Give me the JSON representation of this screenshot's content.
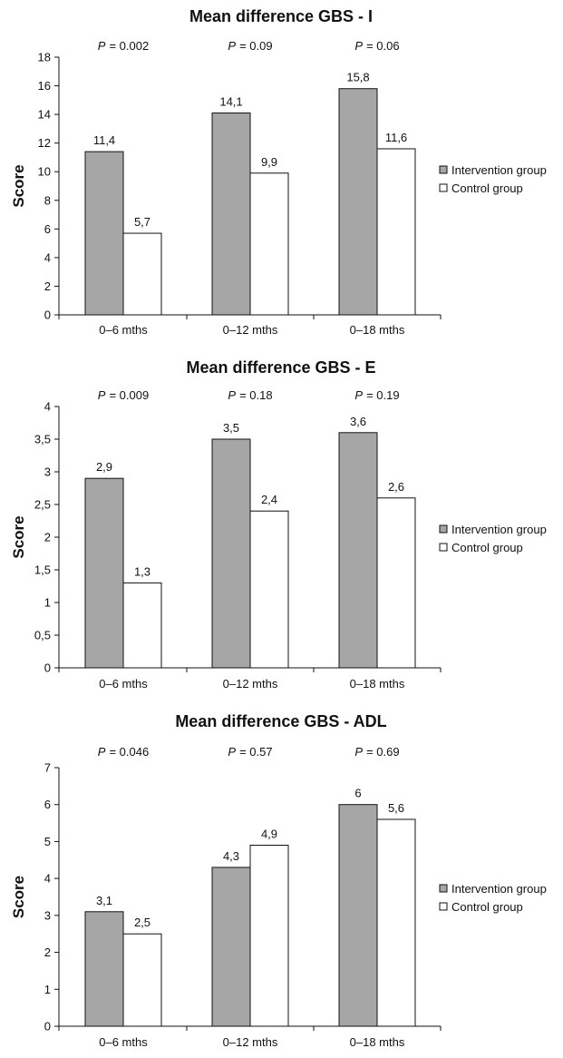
{
  "legend": [
    {
      "label": "Intervention group",
      "color": "#a6a6a6"
    },
    {
      "label": "Control group",
      "color": "#ffffff"
    }
  ],
  "chart_data": [
    {
      "type": "bar",
      "title": "Mean difference GBS - I",
      "ylabel": "Score",
      "ylim": [
        0,
        18
      ],
      "ytick_step": 2,
      "yticks": [
        "0",
        "2",
        "4",
        "6",
        "8",
        "10",
        "12",
        "14",
        "16",
        "18"
      ],
      "categories": [
        "0–6 mths",
        "0–12 mths",
        "0–18 mths"
      ],
      "p_symbol": "P",
      "p_values": [
        "= 0.002",
        "= 0.09",
        "= 0.06"
      ],
      "series": [
        {
          "name": "Intervention group",
          "values": [
            11.4,
            14.1,
            15.8
          ],
          "labels": [
            "11,4",
            "14,1",
            "15,8"
          ]
        },
        {
          "name": "Control group",
          "values": [
            5.7,
            9.9,
            11.6
          ],
          "labels": [
            "5,7",
            "9,9",
            "11,6"
          ]
        }
      ],
      "grid": false,
      "legend_position": "right"
    },
    {
      "type": "bar",
      "title": "Mean difference GBS - E",
      "ylabel": "Score",
      "ylim": [
        0,
        4
      ],
      "ytick_step": 0.5,
      "yticks": [
        "0",
        "0,5",
        "1",
        "1,5",
        "2",
        "2,5",
        "3",
        "3,5",
        "4"
      ],
      "categories": [
        "0–6 mths",
        "0–12 mths",
        "0–18 mths"
      ],
      "p_symbol": "P",
      "p_values": [
        "= 0.009",
        "= 0.18",
        "= 0.19"
      ],
      "series": [
        {
          "name": "Intervention group",
          "values": [
            2.9,
            3.5,
            3.6
          ],
          "labels": [
            "2,9",
            "3,5",
            "3,6"
          ]
        },
        {
          "name": "Control group",
          "values": [
            1.3,
            2.4,
            2.6
          ],
          "labels": [
            "1,3",
            "2,4",
            "2,6"
          ]
        }
      ],
      "grid": false,
      "legend_position": "right"
    },
    {
      "type": "bar",
      "title": "Mean difference GBS - ADL",
      "ylabel": "Score",
      "ylim": [
        0,
        7
      ],
      "ytick_step": 1,
      "yticks": [
        "0",
        "1",
        "2",
        "3",
        "4",
        "5",
        "6",
        "7"
      ],
      "categories": [
        "0–6 mths",
        "0–12 mths",
        "0–18 mths"
      ],
      "p_symbol": "P",
      "p_values": [
        "= 0.046",
        "= 0.57",
        "= 0.69"
      ],
      "series": [
        {
          "name": "Intervention group",
          "values": [
            3.1,
            4.3,
            6.0
          ],
          "labels": [
            "3,1",
            "4,3",
            "6"
          ]
        },
        {
          "name": "Control group",
          "values": [
            2.5,
            4.9,
            5.6
          ],
          "labels": [
            "2,5",
            "4,9",
            "5,6"
          ]
        }
      ],
      "grid": false,
      "legend_position": "right"
    }
  ]
}
